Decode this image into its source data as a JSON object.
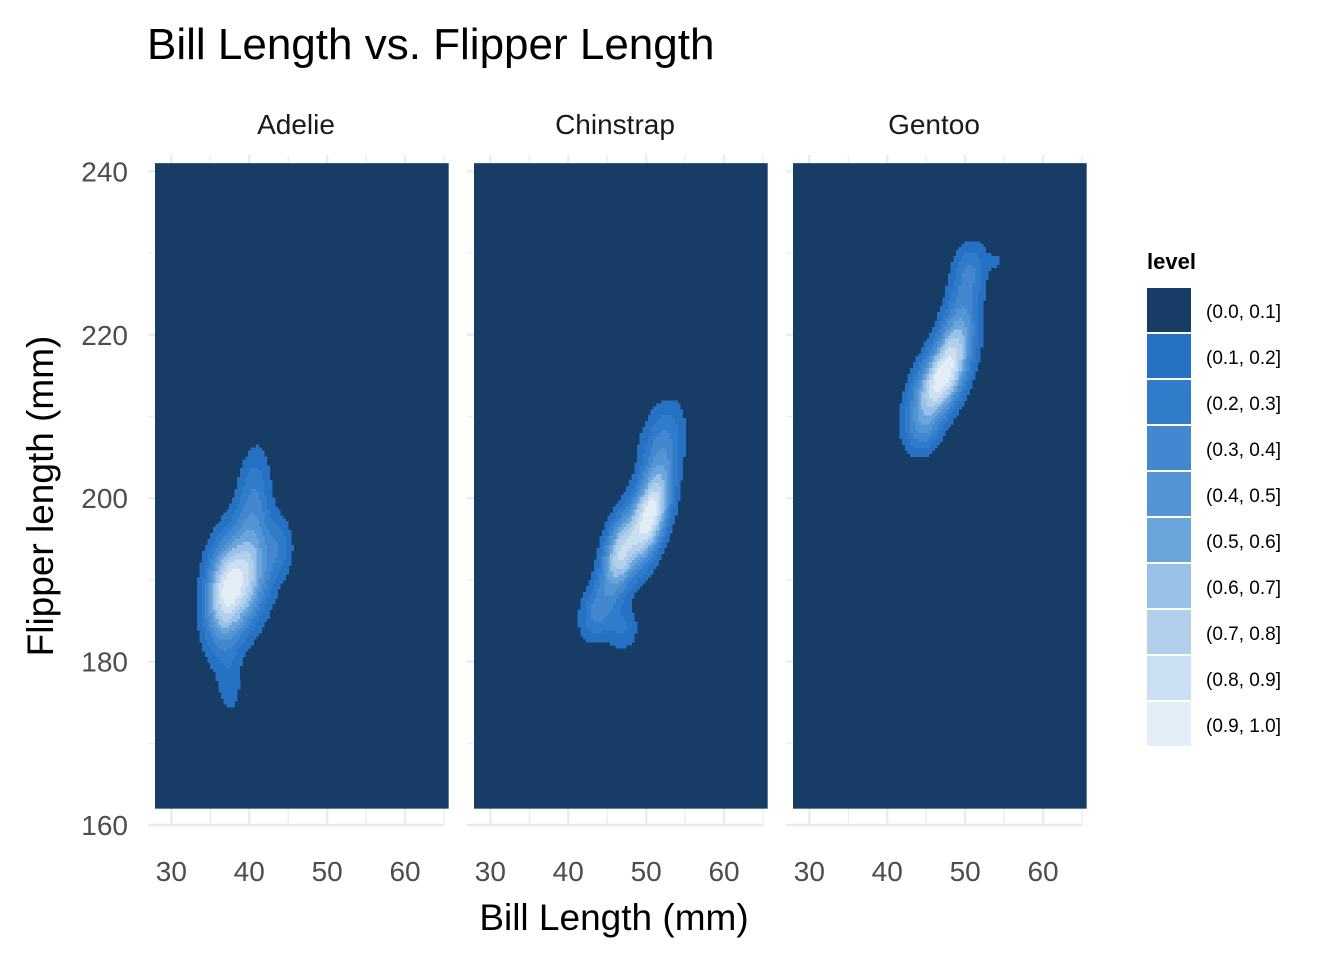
{
  "chart_data": {
    "type": "contour",
    "title": "Bill Length vs. Flipper Length",
    "xlabel": "Bill Length (mm)",
    "ylabel": "Flipper length (mm)",
    "xlim": [
      27,
      65
    ],
    "ylim": [
      160,
      242
    ],
    "x_ticks": [
      30,
      40,
      50,
      60
    ],
    "y_ticks": [
      160,
      180,
      200,
      220,
      240
    ],
    "data_extent": {
      "x": [
        27.9,
        65.6
      ],
      "y": [
        162,
        241
      ]
    },
    "grid": true,
    "background_color": "#173C66",
    "legend": {
      "title": "level",
      "position": "right",
      "entries": [
        {
          "label": "(0.0, 0.1]",
          "color": "#173C66"
        },
        {
          "label": "(0.1, 0.2]",
          "color": "#2571C4"
        },
        {
          "label": "(0.2, 0.3]",
          "color": "#317CCA"
        },
        {
          "label": "(0.3, 0.4]",
          "color": "#4287CF"
        },
        {
          "label": "(0.4, 0.5]",
          "color": "#5295D5"
        },
        {
          "label": "(0.5, 0.6]",
          "color": "#6AA5DC"
        },
        {
          "label": "(0.6, 0.7]",
          "color": "#99C0E6"
        },
        {
          "label": "(0.7, 0.8]",
          "color": "#B2D0EC"
        },
        {
          "label": "(0.8, 0.9]",
          "color": "#CADFF1"
        },
        {
          "label": "(0.9, 1.0]",
          "color": "#E2EDF7"
        }
      ]
    },
    "panels": [
      {
        "name": "Adelie",
        "peaks": [
          {
            "x": 39,
            "y": 190,
            "sx": 2.5,
            "sy": 4.5,
            "rho": 0.3,
            "w": 1.0
          },
          {
            "x": 36.5,
            "y": 188,
            "sx": 1.6,
            "sy": 4.5,
            "rho": 0.1,
            "w": 0.55
          },
          {
            "x": 40.5,
            "y": 200,
            "sx": 1.5,
            "sy": 4.5,
            "rho": 0.2,
            "w": 0.35
          },
          {
            "x": 44,
            "y": 194,
            "sx": 1.2,
            "sy": 2.5,
            "rho": 0.0,
            "w": 0.22
          },
          {
            "x": 37.5,
            "y": 177,
            "sx": 1.2,
            "sy": 3.0,
            "rho": 0.0,
            "w": 0.18
          }
        ]
      },
      {
        "name": "Chinstrap",
        "peaks": [
          {
            "x": 50.5,
            "y": 198,
            "sx": 1.8,
            "sy": 4.0,
            "rho": 0.5,
            "w": 1.0
          },
          {
            "x": 46.5,
            "y": 193,
            "sx": 1.6,
            "sy": 3.5,
            "rho": 0.4,
            "w": 0.75
          },
          {
            "x": 52,
            "y": 207,
            "sx": 2.0,
            "sy": 3.5,
            "rho": 0.3,
            "w": 0.3
          },
          {
            "x": 43.5,
            "y": 186,
            "sx": 1.5,
            "sy": 2.5,
            "rho": 0.2,
            "w": 0.3
          },
          {
            "x": 47,
            "y": 184,
            "sx": 1.5,
            "sy": 2.0,
            "rho": 0.0,
            "w": 0.2
          }
        ]
      },
      {
        "name": "Gentoo",
        "peaks": [
          {
            "x": 46.5,
            "y": 214,
            "sx": 2.3,
            "sy": 3.5,
            "rho": 0.5,
            "w": 1.0
          },
          {
            "x": 49,
            "y": 220,
            "sx": 1.8,
            "sy": 4.0,
            "rho": 0.4,
            "w": 0.55
          },
          {
            "x": 50.5,
            "y": 228,
            "sx": 1.6,
            "sy": 2.5,
            "rho": 0.2,
            "w": 0.3
          },
          {
            "x": 44.5,
            "y": 208,
            "sx": 1.5,
            "sy": 2.0,
            "rho": 0.1,
            "w": 0.25
          },
          {
            "x": 54,
            "y": 229,
            "sx": 0.8,
            "sy": 0.8,
            "rho": 0.0,
            "w": 0.12
          }
        ]
      }
    ]
  }
}
